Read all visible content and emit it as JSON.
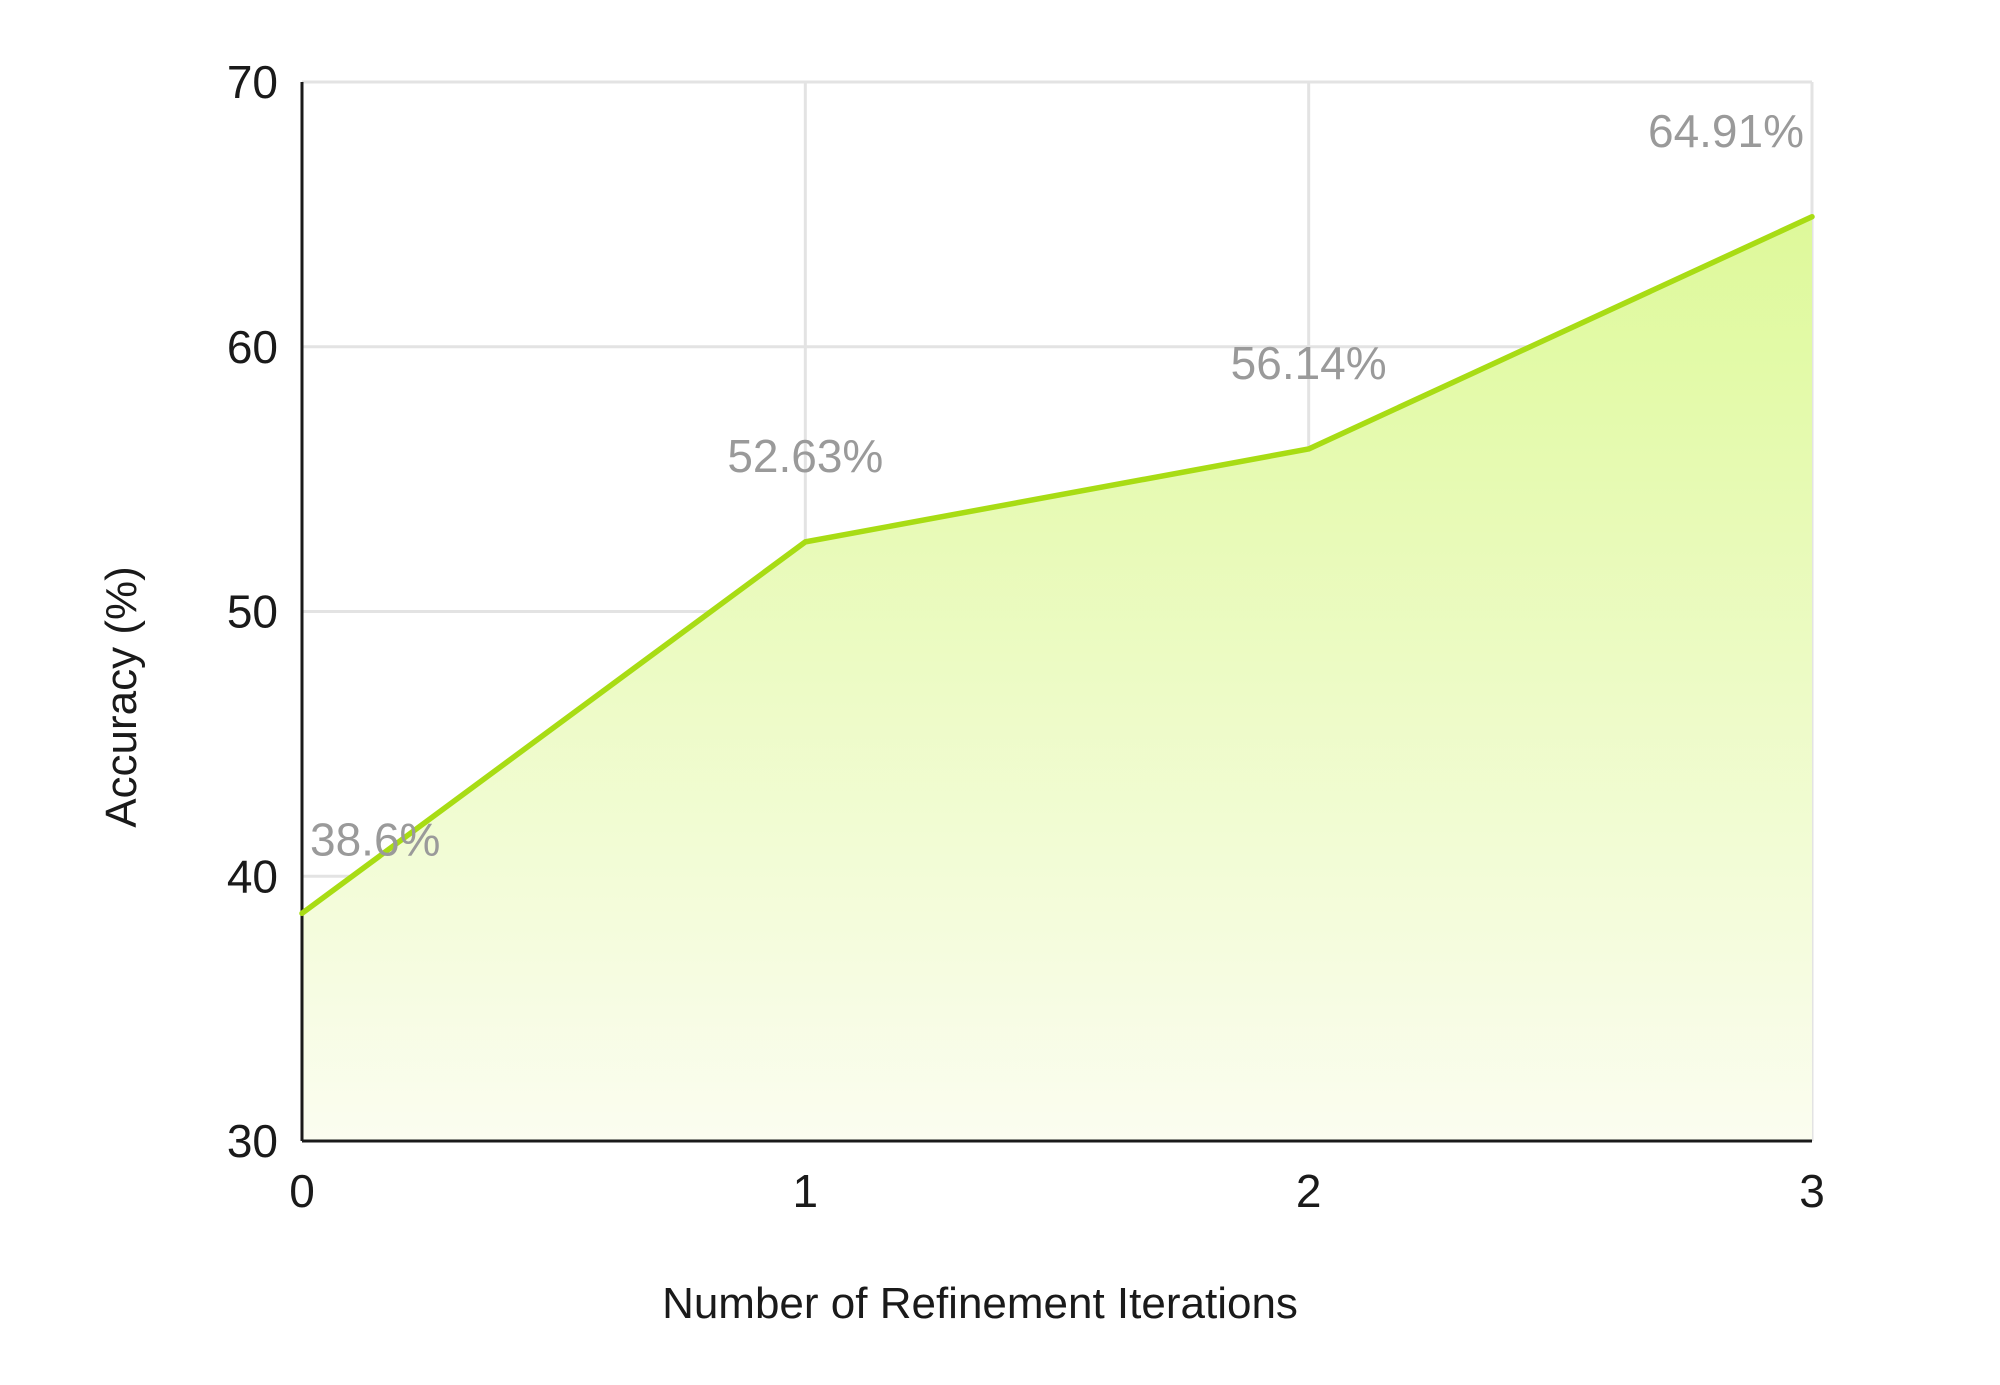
{
  "chart_data": {
    "type": "area",
    "title": "",
    "xlabel": "Number of Refinement Iterations",
    "ylabel": "Accuracy (%)",
    "x": [
      0,
      1,
      2,
      3
    ],
    "x_tick_labels": [
      "0",
      "1",
      "2",
      "3"
    ],
    "y_tick_labels": [
      "30",
      "40",
      "50",
      "60",
      "70"
    ],
    "yticks": [
      30,
      40,
      50,
      60,
      70
    ],
    "xlim": [
      0,
      3
    ],
    "ylim": [
      30,
      70
    ],
    "series": [
      {
        "values": [
          38.6,
          52.63,
          56.14,
          64.91
        ],
        "data_labels": [
          "38.6%",
          "52.63%",
          "56.14%",
          "64.91%"
        ]
      }
    ],
    "grid": true,
    "legend": "none",
    "colors": {
      "line": "#a8dc14",
      "fill_top": "#def99a",
      "fill_bottom": "#fbfdf0",
      "data_label": "#9a9a9a",
      "grid": "#e3e3e3",
      "axis": "#1a1a1a"
    }
  }
}
